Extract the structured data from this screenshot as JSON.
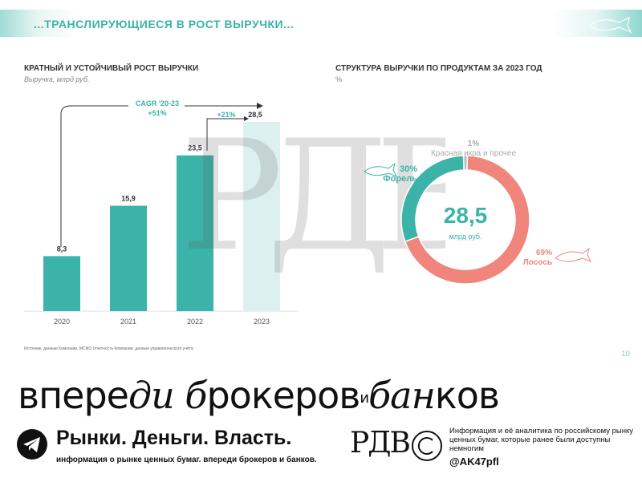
{
  "header": {
    "headline": "...ТРАНСЛИРУЮЩИЕСЯ В РОСТ ВЫРУЧКИ..."
  },
  "left_chart": {
    "subtitle": "КРАТНЫЙ И УСТОЙЧИВЫЙ РОСТ ВЫРУЧКИ",
    "unit": "Выручка, млрд руб."
  },
  "right_chart": {
    "subtitle": "СТРУКТУРА ВЫРУЧКИ ПО ПРОДУКТАМ ЗА 2023 ГОД",
    "unit": "%"
  },
  "chart_data": [
    {
      "type": "bar",
      "title": "КРАТНЫЙ И УСТОЙЧИВЫЙ РОСТ ВЫРУЧКИ",
      "ylabel": "Выручка, млрд руб.",
      "categories": [
        "2020",
        "2021",
        "2022",
        "2023"
      ],
      "values": [
        8.3,
        15.9,
        23.5,
        28.5
      ],
      "value_labels": [
        "8,3",
        "15,9",
        "23,5",
        "28,5"
      ],
      "ylim": [
        0,
        30
      ],
      "grid": false,
      "annotations": {
        "cagr_label": "CAGR '20-23",
        "cagr_value": "+51%",
        "yoy_value": "+21%"
      },
      "colors": {
        "actual": "#3bb3a8",
        "forecast": "#dcf1ef"
      }
    },
    {
      "type": "pie",
      "title": "СТРУКТУРА ВЫРУЧКИ ПО ПРОДУКТАМ ЗА 2023 ГОД",
      "unit": "%",
      "center_value": "28,5",
      "center_label": "млрд руб.",
      "slices": [
        {
          "name": "Лосось",
          "value": 69,
          "label": "69%",
          "color": "#f0857c"
        },
        {
          "name": "Форель",
          "value": 30,
          "label": "30%",
          "color": "#3bb3a8"
        },
        {
          "name": "Красная икра и прочее",
          "value": 1,
          "label": "1%",
          "color": "#bdbdbd"
        }
      ]
    }
  ],
  "footer_source": "Источник: данные Компании, МСФО отчетность Компании, данные управленческого учёта",
  "page_number": "10",
  "promo": {
    "slogan_part1": "впере",
    "slogan_script1": "ди",
    "slogan_script2": "б",
    "slogan_part2": "рокеров",
    "slogan_and": "и",
    "slogan_part3": "ба",
    "slogan_script3": "н",
    "slogan_part4": "ков",
    "brand_title": "Рынки. Деньги. Власть.",
    "brand_subtitle": "информация о рынке ценных бумаг. впереди брокеров и банков.",
    "logo_text": "PДB",
    "info_text": "Информация и её аналитика по российскому рынку ценных бумаг, которые ранее были доступны немногим",
    "handle": "@AK47pfl"
  }
}
